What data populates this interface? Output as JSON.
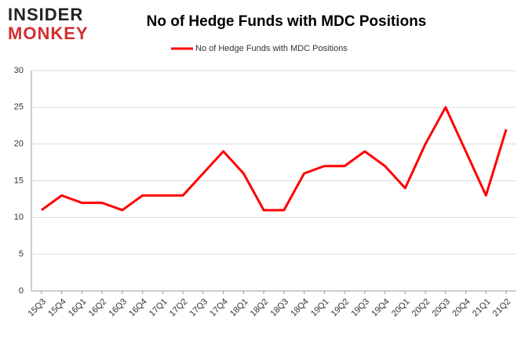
{
  "brand": {
    "line1": "INSIDER",
    "line2": "MONKEY"
  },
  "chart_data": {
    "type": "line",
    "title": "No of Hedge Funds with MDC Positions",
    "categories": [
      "15Q3",
      "15Q4",
      "16Q1",
      "16Q2",
      "16Q3",
      "16Q4",
      "17Q1",
      "17Q2",
      "17Q3",
      "17Q4",
      "18Q1",
      "18Q2",
      "18Q3",
      "18Q4",
      "19Q1",
      "19Q2",
      "19Q3",
      "19Q4",
      "20Q1",
      "20Q2",
      "20Q3",
      "20Q4",
      "21Q1",
      "21Q2"
    ],
    "series": [
      {
        "name": "No of Hedge Funds with MDC Positions",
        "color": "#ff0000",
        "values": [
          11,
          13,
          12,
          12,
          11,
          13,
          13,
          13,
          16,
          19,
          16,
          11,
          11,
          16,
          17,
          17,
          19,
          17,
          14,
          20,
          25,
          19,
          13,
          22
        ]
      }
    ],
    "ylim": [
      0,
      30
    ],
    "yticks": [
      0,
      5,
      10,
      15,
      20,
      25,
      30
    ],
    "grid": true,
    "legend": "top"
  }
}
